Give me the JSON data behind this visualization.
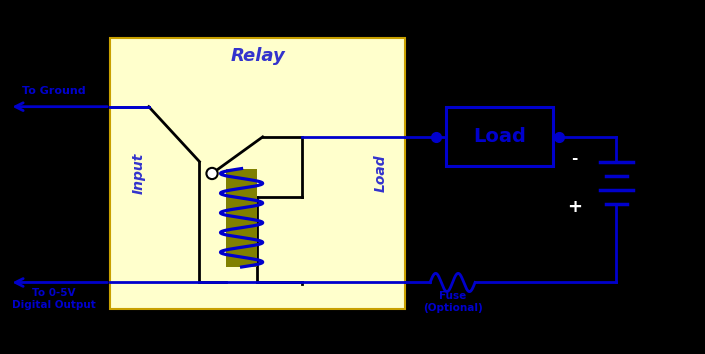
{
  "bg_color": "#000000",
  "relay_box_color": "#FFFFCC",
  "relay_box_edge": "#C8A000",
  "line_color": "#0000CC",
  "black_line": "#000000",
  "load_box_edge": "#0000CC",
  "coil_color": "#0000CC",
  "coil_fill": "#808000",
  "text_color": "#3333CC",
  "relay_label": "Relay",
  "input_label": "Input",
  "load_label_vert": "Load",
  "load_box_label": "Load",
  "to_ground": "To Ground",
  "to_digital": "To 0-5V\nDigital Output",
  "fuse_label": "Fuse\n(Optional)",
  "plus_label": "+",
  "minus_label": "-",
  "xlim": [
    0,
    10
  ],
  "ylim": [
    0,
    5
  ]
}
